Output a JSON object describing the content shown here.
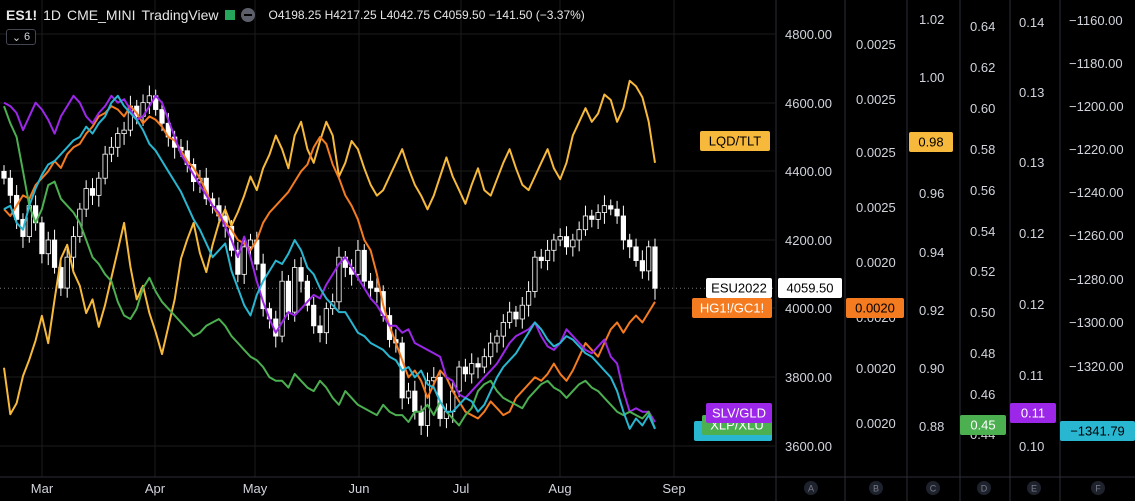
{
  "header": {
    "symbol": "ES1!",
    "interval": "1D",
    "exchange": "CME_MINI",
    "source": "TradingView",
    "ohlc": "O4198.25  H4217.25  L4042.75  C4059.50  −141.50 (−3.37%)",
    "indicator_count": "6"
  },
  "colors": {
    "background": "#000000",
    "candle_up": "#000000",
    "candle_down": "#ffffff",
    "lqd_tlt": "#f6b93b",
    "hg_gc": "#f47b20",
    "slv_gld": "#9c27e8",
    "xlp_xlu": "#4caf50",
    "cyan": "#29b6d1",
    "grid": "#1c1c1c",
    "divider": "#2a2e39"
  },
  "chart_data": {
    "type": "line",
    "title": "",
    "x_labels": [
      "Mar",
      "Apr",
      "May",
      "Jun",
      "Jul",
      "Aug",
      "Sep"
    ],
    "main_series": {
      "name": "ESU2022",
      "last_value": "4059.50",
      "ohlc": {
        "open": 4198.25,
        "high": 4217.25,
        "low": 4042.75,
        "close": 4059.5,
        "change": -141.5,
        "change_pct": -3.37
      },
      "ylim": [
        3600,
        4800
      ],
      "y_ticks": [
        "4800.00",
        "4600.00",
        "4400.00",
        "4200.00",
        "4000.00",
        "3800.00",
        "3600.00"
      ],
      "closes": [
        4380,
        4330,
        4260,
        4210,
        4300,
        4250,
        4160,
        4200,
        4120,
        4060,
        4150,
        4210,
        4290,
        4350,
        4330,
        4380,
        4450,
        4470,
        4510,
        4520,
        4590,
        4560,
        4600,
        4620,
        4580,
        4540,
        4500,
        4470,
        4460,
        4420,
        4370,
        4380,
        4320,
        4300,
        4270,
        4240,
        4170,
        4100,
        4180,
        4200,
        4130,
        4000,
        3970,
        3920,
        4080,
        3990,
        4120,
        4080,
        4010,
        3950,
        3930,
        4000,
        4020,
        4150,
        4120,
        4100,
        4170,
        4080,
        4060,
        4050,
        3980,
        3910,
        3900,
        3740,
        3760,
        3700,
        3660,
        3790,
        3800,
        3680,
        3700,
        3760,
        3830,
        3810,
        3840,
        3830,
        3860,
        3900,
        3920,
        3960,
        3990,
        3970,
        4010,
        4050,
        4150,
        4140,
        4170,
        4200,
        4210,
        4180,
        4200,
        4230,
        4270,
        4260,
        4280,
        4300,
        4290,
        4270,
        4200,
        4180,
        4140,
        4110,
        4180,
        4059.5
      ]
    },
    "series": [
      {
        "name": "LQD/TLT",
        "color": "#f6b93b",
        "axis_labels": [
          "1.02",
          "1.00",
          "0.98",
          "0.96",
          "0.94",
          "0.92",
          "0.90",
          "0.88"
        ],
        "ylim": [
          0.876,
          1.033
        ],
        "last_value": "0.98",
        "values": [
          0.905,
          0.888,
          0.892,
          0.902,
          0.908,
          0.915,
          0.924,
          0.914,
          0.93,
          0.945,
          0.95,
          0.94,
          0.935,
          0.925,
          0.93,
          0.92,
          0.928,
          0.938,
          0.948,
          0.958,
          0.942,
          0.93,
          0.935,
          0.925,
          0.918,
          0.91,
          0.92,
          0.93,
          0.945,
          0.952,
          0.958,
          0.947,
          0.94,
          0.95,
          0.958,
          0.963,
          0.957,
          0.962,
          0.968,
          0.975,
          0.97,
          0.978,
          0.983,
          0.99,
          0.985,
          0.978,
          0.99,
          0.995,
          0.985,
          0.98,
          0.988,
          0.995,
          0.99,
          0.975,
          0.98,
          0.988,
          0.985,
          0.978,
          0.972,
          0.968,
          0.97,
          0.975,
          0.98,
          0.985,
          0.978,
          0.972,
          0.968,
          0.963,
          0.968,
          0.975,
          0.982,
          0.975,
          0.97,
          0.965,
          0.972,
          0.978,
          0.97,
          0.968,
          0.974,
          0.98,
          0.985,
          0.978,
          0.972,
          0.97,
          0.975,
          0.98,
          0.985,
          0.978,
          0.974,
          0.98,
          0.99,
          0.995,
          1.0,
          0.995,
          0.998,
          1.005,
          1.003,
          0.995,
          1.0,
          1.01,
          1.008,
          1.004,
          0.995,
          0.98
        ]
      },
      {
        "name": "HG1!/GC1!",
        "color": "#f47b20",
        "axis_labels": [
          "0.0025",
          "0.0025",
          "0.0025",
          "0.0025",
          "0.0020",
          "0.0020",
          "0.0020",
          "0.0020"
        ],
        "last_value": "0.0020",
        "values": [
          4290,
          4270,
          4300,
          4330,
          4320,
          4360,
          4380,
          4400,
          4430,
          4410,
          4450,
          4470,
          4480,
          4510,
          4530,
          4560,
          4570,
          4590,
          4580,
          4560,
          4590,
          4570,
          4540,
          4560,
          4550,
          4530,
          4500,
          4490,
          4460,
          4430,
          4410,
          4380,
          4340,
          4300,
          4270,
          4250,
          4230,
          4200,
          4190,
          4170,
          4200,
          4250,
          4280,
          4300,
          4320,
          4340,
          4370,
          4400,
          4420,
          4470,
          4500,
          4480,
          4420,
          4380,
          4330,
          4300,
          4260,
          4200,
          4170,
          4100,
          4010,
          3950,
          3900,
          3850,
          3800,
          3820,
          3790,
          3740,
          3780,
          3820,
          3800,
          3760,
          3730,
          3700,
          3690,
          3680,
          3700,
          3730,
          3710,
          3690,
          3700,
          3740,
          3760,
          3780,
          3800,
          3790,
          3810,
          3840,
          3810,
          3790,
          3820,
          3860,
          3900,
          3880,
          3860,
          3900,
          3940,
          3960,
          3930,
          3960,
          3980,
          3960,
          3990,
          4020
        ]
      },
      {
        "name": "SLV/GLD",
        "color": "#9c27e8",
        "axis_labels": [
          "0.14",
          "0.13",
          "0.13",
          "0.12",
          "0.12",
          "0.11",
          "0.10"
        ],
        "last_value": "0.11",
        "values": [
          4600,
          4590,
          4570,
          4520,
          4560,
          4600,
          4580,
          4550,
          4510,
          4560,
          4590,
          4620,
          4600,
          4560,
          4540,
          4570,
          4590,
          4620,
          4600,
          4610,
          4580,
          4550,
          4560,
          4590,
          4620,
          4600,
          4550,
          4500,
          4450,
          4420,
          4390,
          4360,
          4330,
          4300,
          4280,
          4240,
          4200,
          4150,
          4210,
          4150,
          4080,
          4020,
          3970,
          3930,
          3960,
          3990,
          3980,
          4000,
          4020,
          4040,
          4030,
          4070,
          4100,
          4130,
          4150,
          4120,
          4090,
          4060,
          4030,
          4010,
          3980,
          3950,
          3950,
          3930,
          3940,
          3900,
          3890,
          3880,
          3870,
          3860,
          3800,
          3790,
          3750,
          3740,
          3760,
          3780,
          3800,
          3820,
          3840,
          3870,
          3900,
          3920,
          3930,
          3940,
          3960,
          3920,
          3890,
          3880,
          3900,
          3940,
          3920,
          3900,
          3880,
          3870,
          3890,
          3910,
          3860,
          3840,
          3760,
          3700,
          3710,
          3700,
          3700,
          3670
        ]
      },
      {
        "name": "XLP/XLU",
        "color": "#4caf50",
        "axis_labels": [
          "0.64",
          "0.62",
          "0.60",
          "0.58",
          "0.56",
          "0.54",
          "0.52",
          "0.50",
          "0.48",
          "0.46",
          "0.44"
        ],
        "last_value": "0.45",
        "values": [
          4590,
          4540,
          4500,
          4400,
          4300,
          4250,
          4290,
          4360,
          4370,
          4320,
          4300,
          4280,
          4250,
          4200,
          4150,
          4130,
          4100,
          4080,
          4020,
          3980,
          3970,
          4000,
          4060,
          4090,
          4050,
          4020,
          4000,
          3980,
          3960,
          3940,
          3920,
          3930,
          3950,
          3960,
          3970,
          3950,
          3920,
          3900,
          3880,
          3860,
          3850,
          3830,
          3800,
          3790,
          3790,
          3770,
          3810,
          3790,
          3770,
          3760,
          3790,
          3770,
          3740,
          3720,
          3760,
          3740,
          3720,
          3710,
          3700,
          3690,
          3720,
          3700,
          3690,
          3690,
          3670,
          3700,
          3700,
          3720,
          3690,
          3730,
          3700,
          3680,
          3660,
          3690,
          3710,
          3760,
          3780,
          3790,
          3760,
          3740,
          3730,
          3720,
          3710,
          3740,
          3760,
          3780,
          3790,
          3770,
          3760,
          3740,
          3760,
          3780,
          3790,
          3770,
          3760,
          3740,
          3720,
          3700,
          3690,
          3700,
          3690,
          3680,
          3700,
          3650
        ]
      },
      {
        "name": "",
        "color": "#29b6d1",
        "axis_labels": [
          "−1160.00",
          "−1180.00",
          "−1200.00",
          "−1220.00",
          "−1240.00",
          "−1260.00",
          "−1280.00",
          "−1300.00",
          "−1320.00"
        ],
        "last_value": "−1341.79",
        "values": [
          4290,
          4300,
          4250,
          4230,
          4300,
          4350,
          4390,
          4420,
          4430,
          4450,
          4470,
          4490,
          4500,
          4530,
          4510,
          4540,
          4560,
          4600,
          4620,
          4590,
          4570,
          4550,
          4520,
          4480,
          4460,
          4430,
          4400,
          4370,
          4340,
          4300,
          4260,
          4230,
          4190,
          4150,
          4170,
          4190,
          4110,
          4060,
          4010,
          3980,
          4040,
          4080,
          4110,
          4140,
          4130,
          4160,
          4200,
          4170,
          4120,
          4100,
          4060,
          4030,
          4010,
          3990,
          3990,
          3960,
          3930,
          3920,
          3900,
          3890,
          3880,
          3860,
          3850,
          3820,
          3830,
          3800,
          3820,
          3780,
          3770,
          3730,
          3700,
          3700,
          3720,
          3740,
          3730,
          3700,
          3720,
          3760,
          3800,
          3830,
          3850,
          3870,
          3900,
          3930,
          3960,
          3940,
          3910,
          3890,
          3900,
          3920,
          3910,
          3890,
          3870,
          3860,
          3840,
          3820,
          3800,
          3760,
          3700,
          3650,
          3680,
          3660,
          3690,
          3650
        ]
      }
    ],
    "extra_axis_label": "0.0020",
    "axis_letters": [
      "A",
      "B",
      "C",
      "D",
      "E",
      "F"
    ]
  }
}
